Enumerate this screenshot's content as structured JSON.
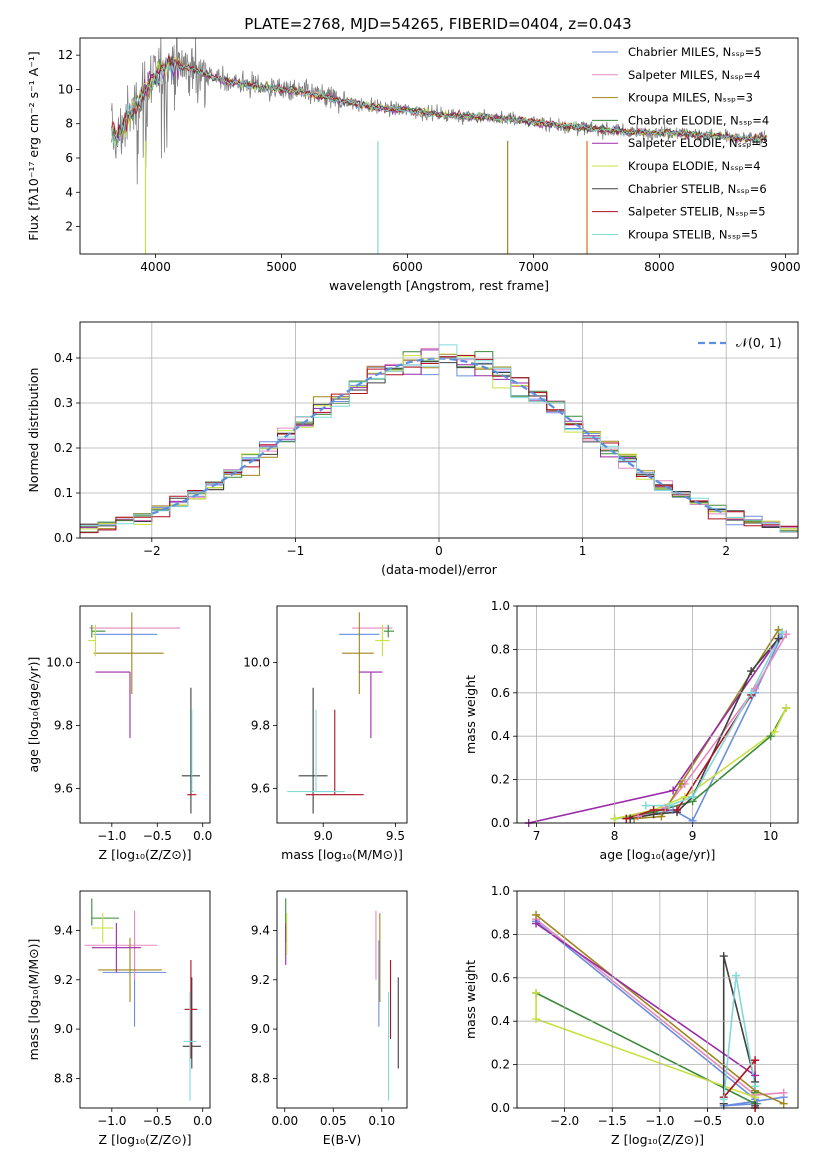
{
  "figure": {
    "title": "PLATE=2768, MJD=54265, FIBERID=0404, z=0.043"
  },
  "models": [
    {
      "name": "Chabrier MILES",
      "color": "#6a8fe0"
    },
    {
      "name": "Salpeter MILES",
      "color": "#e58ac0"
    },
    {
      "name": "Kroupa MILES",
      "color": "#a0861a"
    },
    {
      "name": "Chabrier ELODIE",
      "color": "#3a8a3a"
    },
    {
      "name": "Salpeter ELODIE",
      "color": "#9a2aa8"
    },
    {
      "name": "Kroupa ELODIE",
      "color": "#c8e040"
    },
    {
      "name": "Chabrier STELIB",
      "color": "#404040"
    },
    {
      "name": "Salpeter STELIB",
      "color": "#b01020"
    },
    {
      "name": "Kroupa STELIB",
      "color": "#80dada"
    }
  ],
  "chart_data": [
    {
      "id": "spectrum",
      "type": "line",
      "xlabel": "wavelength [Angstrom, rest frame]",
      "ylabel": "Flux [fλ10⁻¹⁷ erg cm⁻² s⁻¹ A⁻¹]",
      "xlim": [
        3400,
        9100
      ],
      "ylim": [
        0.4,
        13
      ],
      "xticks": [
        "4000",
        "5000",
        "6000",
        "7000",
        "8000",
        "9000"
      ],
      "yticks": [
        "2",
        "4",
        "6",
        "8",
        "10",
        "12"
      ],
      "legend": [
        "Chabrier MILES, Nₛₛₚ=5",
        "Salpeter MILES, Nₛₛₚ=4",
        "Kroupa MILES, Nₛₛₚ=3",
        "Chabrier ELODIE, Nₛₛₚ=4",
        "Salpeter ELODIE, Nₛₛₚ=3",
        "Kroupa ELODIE, Nₛₛₚ=4",
        "Chabrier STELIB, Nₛₛₚ=6",
        "Salpeter STELIB, Nₛₛₚ=5",
        "Kroupa STELIB, Nₛₛₚ=5"
      ],
      "legend_position": "top-right",
      "envelope": {
        "x": [
          3650,
          3700,
          3800,
          3900,
          4000,
          4100,
          4300,
          4500,
          4800,
          5000,
          5200,
          5500,
          5800,
          6000,
          6300,
          6600,
          6900,
          7200,
          7500,
          7800,
          8100,
          8400,
          8700,
          8850
        ],
        "y": [
          7.5,
          7.2,
          8.5,
          9.8,
          10.8,
          11.5,
          11.2,
          10.6,
          10.2,
          10.0,
          9.8,
          9.3,
          8.9,
          8.8,
          8.5,
          8.4,
          8.2,
          7.9,
          7.7,
          7.5,
          7.5,
          7.3,
          7.1,
          7.2
        ]
      }
    },
    {
      "id": "residuals",
      "type": "area",
      "xlabel": "(data-model)/error",
      "ylabel": "Normed distribution",
      "xlim": [
        -2.5,
        2.5
      ],
      "ylim": [
        0,
        0.48
      ],
      "xticks": [
        "−2",
        "−1",
        "0",
        "1",
        "2"
      ],
      "yticks": [
        "0.0",
        "0.1",
        "0.2",
        "0.3",
        "0.4"
      ],
      "legend": [
        "𝒩(0, 1)"
      ],
      "legend_position": "top-right",
      "grid": true
    },
    {
      "id": "age-vs-Z",
      "type": "scatter",
      "xlabel": "Z [log₁₀(Z/Z⊙)]",
      "ylabel": "age  [log₁₀(age/yr)]",
      "xlim": [
        -1.35,
        0.08
      ],
      "ylim": [
        9.49,
        10.18
      ],
      "xticks": [
        "−1.0",
        "−0.5",
        "0.0"
      ],
      "yticks": [
        "9.6",
        "9.8",
        "10.0"
      ],
      "points": [
        {
          "model": 0,
          "x": -0.85,
          "y": 10.09,
          "xerr": [
            0.35,
            0.35
          ],
          "yerr": [
            0.0,
            0.0
          ]
        },
        {
          "model": 1,
          "x": -0.7,
          "y": 10.11,
          "xerr": [
            0.55,
            0.45
          ],
          "yerr": [
            0.0,
            0.0
          ]
        },
        {
          "model": 2,
          "x": -0.78,
          "y": 10.03,
          "xerr": [
            0.42,
            0.35
          ],
          "yerr": [
            0.13,
            0.13
          ]
        },
        {
          "model": 3,
          "x": -1.22,
          "y": 10.1,
          "xerr": [
            0.0,
            0.15
          ],
          "yerr": [
            0.02,
            0.02
          ]
        },
        {
          "model": 4,
          "x": -0.8,
          "y": 9.97,
          "xerr": [
            0.38,
            0.0
          ],
          "yerr": [
            0.21,
            0.0
          ]
        },
        {
          "model": 5,
          "x": -1.18,
          "y": 10.07,
          "xerr": [
            0.08,
            0.0
          ],
          "yerr": [
            0.05,
            0.05
          ]
        },
        {
          "model": 6,
          "x": -0.13,
          "y": 9.64,
          "xerr": [
            0.1,
            0.1
          ],
          "yerr": [
            0.12,
            0.28
          ]
        },
        {
          "model": 7,
          "x": -0.12,
          "y": 9.58,
          "xerr": [
            0.05,
            0.05
          ],
          "yerr": [
            0.0,
            0.0
          ]
        },
        {
          "model": 8,
          "x": -0.12,
          "y": 9.59,
          "xerr": [
            0.0,
            0.02
          ],
          "yerr": [
            0.0,
            0.26
          ]
        }
      ]
    },
    {
      "id": "age-vs-mass",
      "type": "scatter",
      "xlabel": "mass [log₁₀(M/M⊙)]",
      "ylabel": "",
      "xlim": [
        8.68,
        9.58
      ],
      "ylim": [
        9.49,
        10.18
      ],
      "xticks": [
        "9.0",
        "9.5"
      ],
      "yticks": [
        "9.6",
        "9.8",
        "10.0"
      ],
      "points": [
        {
          "model": 0,
          "x": 9.25,
          "y": 10.09,
          "xerr": [
            0.14,
            0.14
          ],
          "yerr": [
            0.0,
            0.0
          ]
        },
        {
          "model": 1,
          "x": 9.34,
          "y": 10.11,
          "xerr": [
            0.14,
            0.14
          ],
          "yerr": [
            0.0,
            0.0
          ]
        },
        {
          "model": 2,
          "x": 9.25,
          "y": 10.03,
          "xerr": [
            0.12,
            0.1
          ],
          "yerr": [
            0.13,
            0.13
          ]
        },
        {
          "model": 3,
          "x": 9.45,
          "y": 10.1,
          "xerr": [
            0.03,
            0.04
          ],
          "yerr": [
            0.02,
            0.02
          ]
        },
        {
          "model": 4,
          "x": 9.33,
          "y": 9.97,
          "xerr": [
            0.08,
            0.08
          ],
          "yerr": [
            0.21,
            0.0
          ]
        },
        {
          "model": 5,
          "x": 9.41,
          "y": 10.07,
          "xerr": [
            0.05,
            0.05
          ],
          "yerr": [
            0.05,
            0.05
          ]
        },
        {
          "model": 6,
          "x": 8.93,
          "y": 9.64,
          "xerr": [
            0.1,
            0.1
          ],
          "yerr": [
            0.12,
            0.28
          ]
        },
        {
          "model": 7,
          "x": 9.08,
          "y": 9.58,
          "xerr": [
            0.2,
            0.2
          ],
          "yerr": [
            0.0,
            0.27
          ]
        },
        {
          "model": 8,
          "x": 8.95,
          "y": 9.59,
          "xerr": [
            0.2,
            0.2
          ],
          "yerr": [
            0.0,
            0.26
          ]
        }
      ]
    },
    {
      "id": "weight-vs-age",
      "type": "line",
      "xlabel": "age  [log₁₀(age/yr)]",
      "ylabel": "mass weight",
      "xlim": [
        6.75,
        10.35
      ],
      "ylim": [
        0,
        1
      ],
      "xticks": [
        "7",
        "8",
        "9",
        "10"
      ],
      "yticks": [
        "0.0",
        "0.2",
        "0.4",
        "0.6",
        "0.8",
        "1.0"
      ],
      "series": [
        {
          "model": 0,
          "x": [
            8.2,
            8.75,
            9.0,
            9.8,
            10.15
          ],
          "y": [
            0.02,
            0.06,
            0.01,
            0.6,
            0.87
          ]
        },
        {
          "model": 1,
          "x": [
            8.3,
            8.65,
            8.9,
            9.8,
            10.2
          ],
          "y": [
            0.03,
            0.07,
            0.18,
            0.62,
            0.87
          ]
        },
        {
          "model": 2,
          "x": [
            8.25,
            8.6,
            8.85,
            10.1
          ],
          "y": [
            0.02,
            0.03,
            0.18,
            0.89
          ]
        },
        {
          "model": 3,
          "x": [
            8.0,
            8.5,
            9.0,
            10.0,
            10.2
          ],
          "y": [
            0.02,
            0.05,
            0.1,
            0.4,
            0.53
          ]
        },
        {
          "model": 4,
          "x": [
            6.9,
            8.75,
            10.1
          ],
          "y": [
            0.0,
            0.15,
            0.85
          ]
        },
        {
          "model": 5,
          "x": [
            8.0,
            8.5,
            8.9,
            10.05,
            10.2
          ],
          "y": [
            0.02,
            0.06,
            0.12,
            0.42,
            0.53
          ]
        },
        {
          "model": 6,
          "x": [
            8.2,
            8.5,
            8.8,
            9.0,
            9.75,
            10.1
          ],
          "y": [
            0.02,
            0.04,
            0.05,
            0.12,
            0.7,
            0.85
          ]
        },
        {
          "model": 7,
          "x": [
            8.15,
            8.5,
            8.8,
            9.75
          ],
          "y": [
            0.02,
            0.06,
            0.06,
            0.59
          ]
        },
        {
          "model": 8,
          "x": [
            8.4,
            8.7,
            9.0,
            9.75,
            10.15
          ],
          "y": [
            0.08,
            0.08,
            0.12,
            0.6,
            0.88
          ]
        }
      ]
    },
    {
      "id": "mass-vs-Z",
      "type": "scatter",
      "xlabel": "Z [log₁₀(Z/Z⊙)]",
      "ylabel": "mass [log₁₀(M/M⊙)]",
      "xlim": [
        -1.35,
        0.08
      ],
      "ylim": [
        8.68,
        9.56
      ],
      "xticks": [
        "−1.0",
        "−0.5",
        "0.0"
      ],
      "yticks": [
        "8.8",
        "9.0",
        "9.2",
        "9.4"
      ],
      "points": [
        {
          "model": 0,
          "x": -0.75,
          "y": 9.23,
          "xerr": [
            0.35,
            0.35
          ],
          "yerr": [
            0.22,
            0.13
          ]
        },
        {
          "model": 1,
          "x": -0.75,
          "y": 9.34,
          "xerr": [
            0.55,
            0.25
          ],
          "yerr": [
            0.14,
            0.14
          ]
        },
        {
          "model": 2,
          "x": -0.8,
          "y": 9.24,
          "xerr": [
            0.35,
            0.35
          ],
          "yerr": [
            0.13,
            0.13
          ]
        },
        {
          "model": 3,
          "x": -1.22,
          "y": 9.45,
          "xerr": [
            0.0,
            0.3
          ],
          "yerr": [
            0.03,
            0.08
          ]
        },
        {
          "model": 4,
          "x": -0.95,
          "y": 9.33,
          "xerr": [
            0.27,
            0.27
          ],
          "yerr": [
            0.1,
            0.1
          ]
        },
        {
          "model": 5,
          "x": -1.1,
          "y": 9.41,
          "xerr": [
            0.12,
            0.12
          ],
          "yerr": [
            0.06,
            0.06
          ]
        },
        {
          "model": 6,
          "x": -0.12,
          "y": 8.93,
          "xerr": [
            0.1,
            0.1
          ],
          "yerr": [
            0.09,
            0.28
          ]
        },
        {
          "model": 7,
          "x": -0.13,
          "y": 9.08,
          "xerr": [
            0.07,
            0.07
          ],
          "yerr": [
            0.2,
            0.2
          ]
        },
        {
          "model": 8,
          "x": -0.14,
          "y": 8.95,
          "xerr": [
            0.07,
            0.07
          ],
          "yerr": [
            0.24,
            0.2
          ]
        }
      ]
    },
    {
      "id": "mass-vs-ebv",
      "type": "scatter",
      "xlabel": "E(B-V)",
      "ylabel": "",
      "xlim": [
        -0.008,
        0.126
      ],
      "ylim": [
        8.68,
        9.56
      ],
      "xticks": [
        "0.00",
        "0.05",
        "0.10"
      ],
      "yticks": [
        "8.8",
        "9.0",
        "9.2",
        "9.4"
      ],
      "points": [
        {
          "model": 0,
          "y": 9.23,
          "x": 0.097,
          "yerr": [
            0.22,
            0.13
          ]
        },
        {
          "model": 1,
          "y": 9.34,
          "x": 0.094,
          "yerr": [
            0.14,
            0.14
          ]
        },
        {
          "model": 2,
          "y": 9.24,
          "x": 0.098,
          "yerr": [
            0.13,
            0.23
          ]
        },
        {
          "model": 3,
          "y": 9.45,
          "x": 0.001,
          "yerr": [
            0.1,
            0.08
          ]
        },
        {
          "model": 4,
          "y": 9.33,
          "x": 0.001,
          "yerr": [
            0.07,
            0.1
          ]
        },
        {
          "model": 5,
          "y": 9.41,
          "x": 0.002,
          "yerr": [
            0.11,
            0.06
          ]
        },
        {
          "model": 6,
          "y": 8.93,
          "x": 0.117,
          "yerr": [
            0.09,
            0.28
          ]
        },
        {
          "model": 7,
          "y": 9.08,
          "x": 0.109,
          "yerr": [
            0.12,
            0.2
          ]
        },
        {
          "model": 8,
          "y": 8.95,
          "x": 0.107,
          "yerr": [
            0.24,
            0.2
          ]
        }
      ]
    },
    {
      "id": "weight-vs-Z",
      "type": "line",
      "xlabel": "Z [log₁₀(Z/Z⊙)]",
      "ylabel": "mass weight",
      "xlim": [
        -2.5,
        0.45
      ],
      "ylim": [
        0,
        1
      ],
      "xticks": [
        "−2.0",
        "−1.5",
        "−1.0",
        "−0.5",
        "0.0"
      ],
      "yticks": [
        "0.0",
        "0.2",
        "0.4",
        "0.6",
        "0.8",
        "1.0"
      ],
      "series": [
        {
          "model": 0,
          "x": [
            -2.3,
            0.0,
            0.02,
            -0.33,
            0.3
          ],
          "y": [
            0.86,
            0.04,
            0.02,
            0.01,
            0.05
          ]
        },
        {
          "model": 1,
          "x": [
            -2.3,
            0.0,
            0.3
          ],
          "y": [
            0.87,
            0.06,
            0.07
          ]
        },
        {
          "model": 2,
          "x": [
            -2.3,
            0.0,
            0.3
          ],
          "y": [
            0.89,
            0.08,
            0.02
          ]
        },
        {
          "model": 3,
          "x": [
            -2.3,
            0.0,
            0.0
          ],
          "y": [
            0.53,
            0.02,
            0.07
          ]
        },
        {
          "model": 4,
          "x": [
            -2.3,
            0.0
          ],
          "y": [
            0.85,
            0.15
          ]
        },
        {
          "model": 5,
          "x": [
            -2.3,
            -2.3,
            0.0
          ],
          "y": [
            0.53,
            0.41,
            0.05
          ]
        },
        {
          "model": 6,
          "x": [
            -0.33,
            -0.33,
            0.0,
            0.0
          ],
          "y": [
            0.02,
            0.7,
            0.12,
            0.01
          ]
        },
        {
          "model": 7,
          "x": [
            -0.33,
            0.0,
            0.0
          ],
          "y": [
            0.05,
            0.22,
            0.0
          ]
        },
        {
          "model": 8,
          "x": [
            -0.33,
            -0.2,
            0.0
          ],
          "y": [
            0.04,
            0.61,
            0.1
          ]
        }
      ]
    }
  ]
}
